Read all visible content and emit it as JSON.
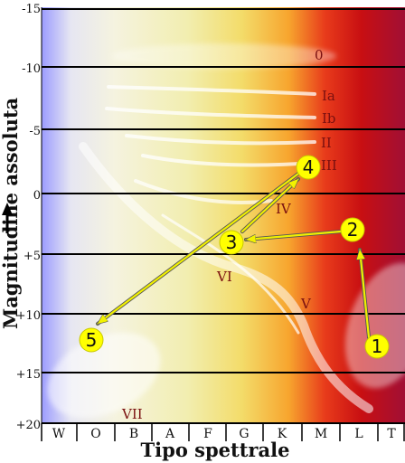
{
  "diagram": {
    "y_axis": {
      "title": "Magnitudine assoluta",
      "ticks": [
        "-15",
        "-10",
        "-5",
        "0",
        "+5",
        "+10",
        "+15",
        "+20"
      ]
    },
    "x_axis": {
      "title": "Tipo spettrale",
      "classes": [
        "W",
        "O",
        "B",
        "A",
        "F",
        "G",
        "K",
        "M",
        "L",
        "T"
      ]
    },
    "luminosity_classes": [
      "0",
      "Ia",
      "Ib",
      "II",
      "III",
      "IV",
      "V",
      "VI",
      "VII"
    ],
    "stages": [
      "1",
      "2",
      "3",
      "4",
      "5"
    ],
    "colors": {
      "marker_fill": "#ffff00",
      "arrow": "#e6e600",
      "label_dark_red": "#7a1010"
    }
  }
}
